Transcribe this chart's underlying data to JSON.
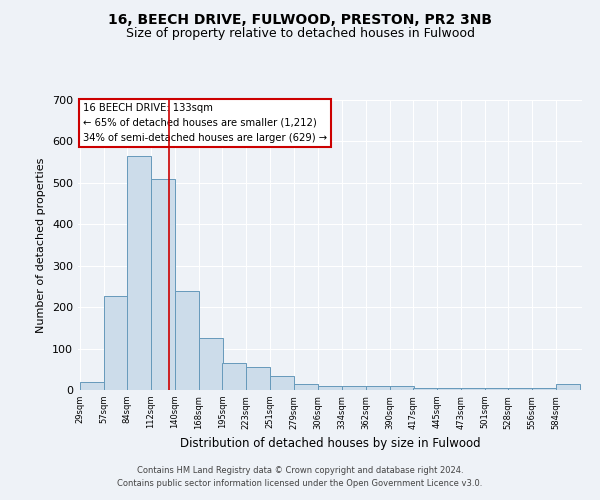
{
  "title1": "16, BEECH DRIVE, FULWOOD, PRESTON, PR2 3NB",
  "title2": "Size of property relative to detached houses in Fulwood",
  "xlabel": "Distribution of detached houses by size in Fulwood",
  "ylabel": "Number of detached properties",
  "bin_edges": [
    29,
    57,
    84,
    112,
    140,
    168,
    195,
    223,
    251,
    279,
    306,
    334,
    362,
    390,
    417,
    445,
    473,
    501,
    528,
    556,
    584
  ],
  "bar_heights": [
    20,
    228,
    565,
    510,
    240,
    125,
    65,
    55,
    35,
    15,
    10,
    10,
    10,
    10,
    5,
    5,
    5,
    5,
    5,
    5,
    15
  ],
  "bar_color": "#ccdcea",
  "bar_edge_color": "#6699bb",
  "red_line_x": 133,
  "annotation_title": "16 BEECH DRIVE: 133sqm",
  "annotation_line1": "← 65% of detached houses are smaller (1,212)",
  "annotation_line2": "34% of semi-detached houses are larger (629) →",
  "annotation_box_color": "white",
  "annotation_box_edge_color": "#cc0000",
  "ylim": [
    0,
    700
  ],
  "yticks": [
    0,
    100,
    200,
    300,
    400,
    500,
    600,
    700
  ],
  "footer1": "Contains HM Land Registry data © Crown copyright and database right 2024.",
  "footer2": "Contains public sector information licensed under the Open Government Licence v3.0.",
  "background_color": "#eef2f7",
  "grid_color": "#ffffff",
  "title1_fontsize": 10,
  "title2_fontsize": 9
}
